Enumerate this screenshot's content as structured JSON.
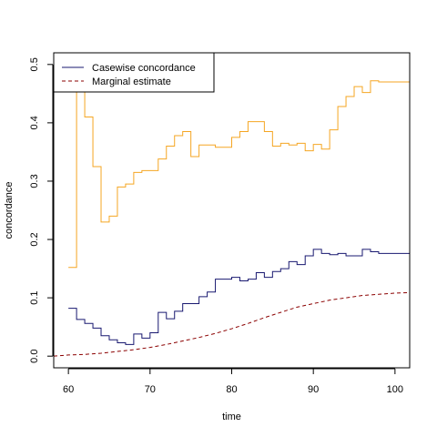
{
  "chart_data": {
    "type": "line",
    "title": "",
    "xlabel": "time",
    "ylabel": "concordance",
    "xlim": [
      58.2,
      101.8
    ],
    "ylim": [
      -0.02,
      0.52
    ],
    "x_ticks": [
      60,
      70,
      80,
      90,
      100
    ],
    "y_ticks": [
      0.0,
      0.1,
      0.2,
      0.3,
      0.4,
      0.5
    ],
    "grid": false,
    "legend": {
      "position": "top-left",
      "entries": [
        {
          "label": "Casewise concordance",
          "color": "#191970",
          "style": "solid"
        },
        {
          "label": "Marginal estimate",
          "color": "#8b0000",
          "style": "dashed"
        }
      ]
    },
    "series": [
      {
        "color": "#f5a623",
        "style": "step",
        "x": [
          60,
          61,
          62,
          63,
          64,
          65,
          66,
          67,
          68,
          69,
          70,
          71,
          72,
          73,
          74,
          75,
          76,
          77,
          78,
          79,
          80,
          81,
          82,
          83,
          84,
          85,
          86,
          87,
          88,
          89,
          90,
          91,
          92,
          93,
          94,
          95,
          96,
          97,
          98,
          99,
          100,
          101
        ],
        "y": [
          0.152,
          0.49,
          0.41,
          0.325,
          0.23,
          0.24,
          0.29,
          0.295,
          0.315,
          0.318,
          0.318,
          0.338,
          0.36,
          0.378,
          0.385,
          0.342,
          0.362,
          0.362,
          0.358,
          0.358,
          0.375,
          0.385,
          0.402,
          0.402,
          0.385,
          0.36,
          0.365,
          0.362,
          0.365,
          0.352,
          0.363,
          0.355,
          0.388,
          0.428,
          0.445,
          0.462,
          0.452,
          0.472,
          0.47,
          0.47,
          0.47,
          0.47
        ]
      },
      {
        "name": "Casewise concordance",
        "color": "#191970",
        "style": "step",
        "x": [
          60,
          61,
          62,
          63,
          64,
          65,
          66,
          67,
          68,
          69,
          70,
          71,
          72,
          73,
          74,
          75,
          76,
          77,
          78,
          79,
          80,
          81,
          82,
          83,
          84,
          85,
          86,
          87,
          88,
          89,
          90,
          91,
          92,
          93,
          94,
          95,
          96,
          97,
          98,
          99,
          100,
          101
        ],
        "y": [
          0.082,
          0.063,
          0.056,
          0.048,
          0.035,
          0.028,
          0.023,
          0.02,
          0.038,
          0.031,
          0.04,
          0.075,
          0.064,
          0.077,
          0.09,
          0.09,
          0.102,
          0.11,
          0.132,
          0.132,
          0.135,
          0.129,
          0.132,
          0.143,
          0.135,
          0.145,
          0.15,
          0.162,
          0.157,
          0.172,
          0.183,
          0.176,
          0.174,
          0.176,
          0.172,
          0.172,
          0.183,
          0.179,
          0.176,
          0.176,
          0.176,
          0.176
        ]
      },
      {
        "name": "Marginal estimate",
        "color": "#8b0000",
        "style": "dashed",
        "x": [
          58.2,
          60,
          62,
          64,
          66,
          68,
          70,
          72,
          74,
          76,
          78,
          80,
          82,
          84,
          86,
          88,
          90,
          92,
          94,
          96,
          98,
          100,
          101.8
        ],
        "y": [
          0.0,
          0.002,
          0.003,
          0.005,
          0.008,
          0.011,
          0.015,
          0.02,
          0.026,
          0.032,
          0.039,
          0.047,
          0.056,
          0.066,
          0.075,
          0.084,
          0.09,
          0.096,
          0.1,
          0.104,
          0.106,
          0.108,
          0.109
        ]
      }
    ]
  }
}
